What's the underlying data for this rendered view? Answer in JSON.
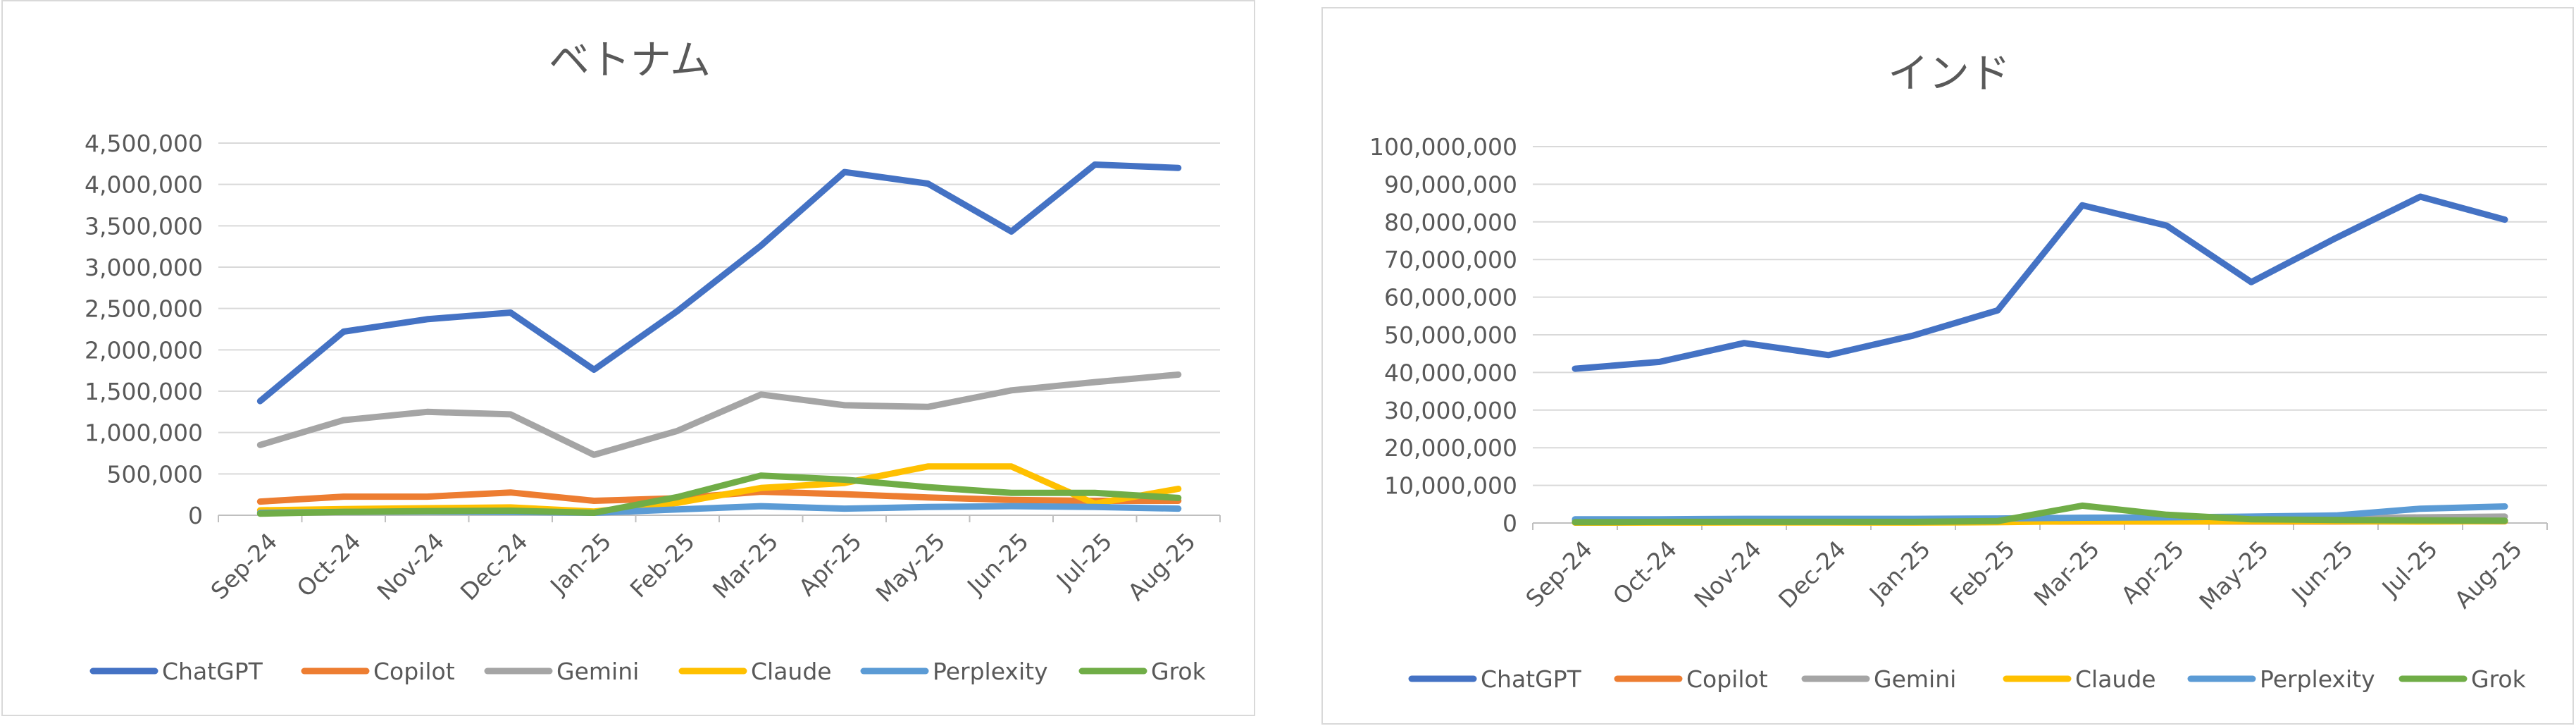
{
  "chart_data": [
    {
      "type": "line",
      "title": "ベトナム",
      "categories": [
        "Sep-24",
        "Oct-24",
        "Nov-24",
        "Dec-24",
        "Jan-25",
        "Feb-25",
        "Mar-25",
        "Apr-25",
        "May-25",
        "Jun-25",
        "Jul-25",
        "Aug-25"
      ],
      "ylim": [
        0,
        4500000
      ],
      "ytick_step": 500000,
      "yticks": [
        "0",
        "500,000",
        "1,000,000",
        "1,500,000",
        "2,000,000",
        "2,500,000",
        "3,000,000",
        "3,500,000",
        "4,000,000",
        "4,500,000"
      ],
      "legend_position": "bottom",
      "series": [
        {
          "name": "ChatGPT",
          "color": "#4472c4",
          "values": [
            1380000,
            2220000,
            2370000,
            2450000,
            1760000,
            2470000,
            3260000,
            4150000,
            4010000,
            3430000,
            4240000,
            4200000
          ]
        },
        {
          "name": "Copilot",
          "color": "#ed7d31",
          "values": [
            165000,
            225000,
            225000,
            275000,
            175000,
            205000,
            285000,
            255000,
            215000,
            185000,
            175000,
            175000
          ]
        },
        {
          "name": "Gemini",
          "color": "#a5a5a5",
          "values": [
            850000,
            1150000,
            1250000,
            1220000,
            730000,
            1020000,
            1460000,
            1330000,
            1310000,
            1510000,
            1610000,
            1700000
          ]
        },
        {
          "name": "Claude",
          "color": "#ffc000",
          "values": [
            60000,
            75000,
            85000,
            95000,
            45000,
            150000,
            330000,
            390000,
            590000,
            590000,
            140000,
            320000
          ]
        },
        {
          "name": "Perplexity",
          "color": "#5b9bd5",
          "values": [
            30000,
            40000,
            45000,
            40000,
            30000,
            70000,
            110000,
            80000,
            100000,
            110000,
            100000,
            80000
          ]
        },
        {
          "name": "Grok",
          "color": "#70ad47",
          "values": [
            20000,
            40000,
            50000,
            55000,
            30000,
            220000,
            480000,
            430000,
            340000,
            270000,
            270000,
            210000
          ]
        }
      ]
    },
    {
      "type": "line",
      "title": "インド",
      "categories": [
        "Sep-24",
        "Oct-24",
        "Nov-24",
        "Dec-24",
        "Jan-25",
        "Feb-25",
        "Mar-25",
        "Apr-25",
        "May-25",
        "Jun-25",
        "Jul-25",
        "Aug-25"
      ],
      "ylim": [
        0,
        100000000
      ],
      "ytick_step": 10000000,
      "yticks": [
        "0",
        "10,000,000",
        "20,000,000",
        "30,000,000",
        "40,000,000",
        "50,000,000",
        "60,000,000",
        "70,000,000",
        "80,000,000",
        "90,000,000",
        "100,000,000"
      ],
      "legend_position": "bottom",
      "series": [
        {
          "name": "ChatGPT",
          "color": "#4472c4",
          "values": [
            41000000,
            42800000,
            47800000,
            44600000,
            49800000,
            56500000,
            84400000,
            79000000,
            64000000,
            75700000,
            86700000,
            80600000
          ]
        },
        {
          "name": "Copilot",
          "color": "#ed7d31",
          "values": [
            300000,
            350000,
            350000,
            400000,
            350000,
            350000,
            400000,
            400000,
            400000,
            400000,
            450000,
            450000
          ]
        },
        {
          "name": "Gemini",
          "color": "#a5a5a5",
          "values": [
            600000,
            700000,
            800000,
            800000,
            700000,
            800000,
            1200000,
            1200000,
            1200000,
            1300000,
            1500000,
            1700000
          ]
        },
        {
          "name": "Claude",
          "color": "#ffc000",
          "values": [
            100000,
            120000,
            130000,
            150000,
            120000,
            200000,
            500000,
            400000,
            500000,
            500000,
            400000,
            500000
          ]
        },
        {
          "name": "Perplexity",
          "color": "#5b9bd5",
          "values": [
            1000000,
            1000000,
            1100000,
            1100000,
            1100000,
            1200000,
            1400000,
            1500000,
            1700000,
            2000000,
            3800000,
            4400000
          ]
        },
        {
          "name": "Grok",
          "color": "#70ad47",
          "values": [
            200000,
            300000,
            300000,
            300000,
            300000,
            500000,
            4600000,
            2200000,
            1000000,
            800000,
            700000,
            600000
          ]
        }
      ]
    }
  ]
}
